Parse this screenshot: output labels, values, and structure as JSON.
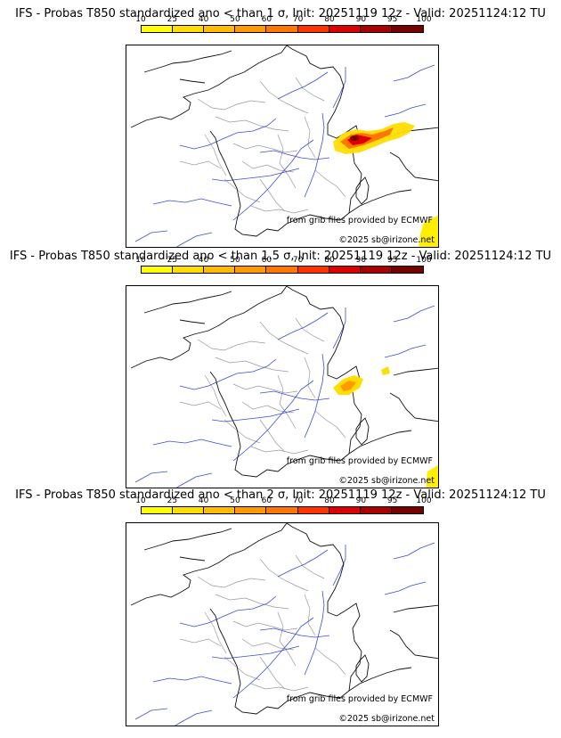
{
  "panels": [
    {
      "title": "IFS - Probas T850  standardized ano < than 1 σ, Init: 20251119 12z - Valid: 20251124:12 TU",
      "source_text": "from grib files provided by ECMWF",
      "copyright": "©2025 sb@irizone.net",
      "probability_areas": [
        "Alps (Savoie / Haute-Savoie / Piedmont)",
        "Swiss-Italian Alps",
        "Corsica south-east corner"
      ]
    },
    {
      "title": "IFS - Probas T850  standardized ano < than 1.5 σ, Init: 20251119 12z - Valid: 20251124:12 TU",
      "source_text": "from grib files provided by ECMWF",
      "copyright": "©2025 sb@irizone.net",
      "probability_areas": [
        "Alps (Savoie / Haute-Savoie)",
        "Swiss-Italian Alps small patch",
        "Corsica south-east corner"
      ]
    },
    {
      "title": "IFS - Probas T850  standardized ano < than 2 σ, Init: 20251119 12z - Valid: 20251124:12 TU",
      "source_text": "from grib files provided by ECMWF",
      "copyright": "©2025 sb@irizone.net",
      "probability_areas": []
    }
  ],
  "colorbar": {
    "ticks": [
      "10",
      "25",
      "40",
      "50",
      "60",
      "70",
      "80",
      "90",
      "95",
      "100"
    ],
    "colors": [
      "#ffff00",
      "#ffdd00",
      "#ffbb00",
      "#ff9900",
      "#ff7700",
      "#ff3300",
      "#dd0000",
      "#aa0000",
      "#770000"
    ]
  }
}
